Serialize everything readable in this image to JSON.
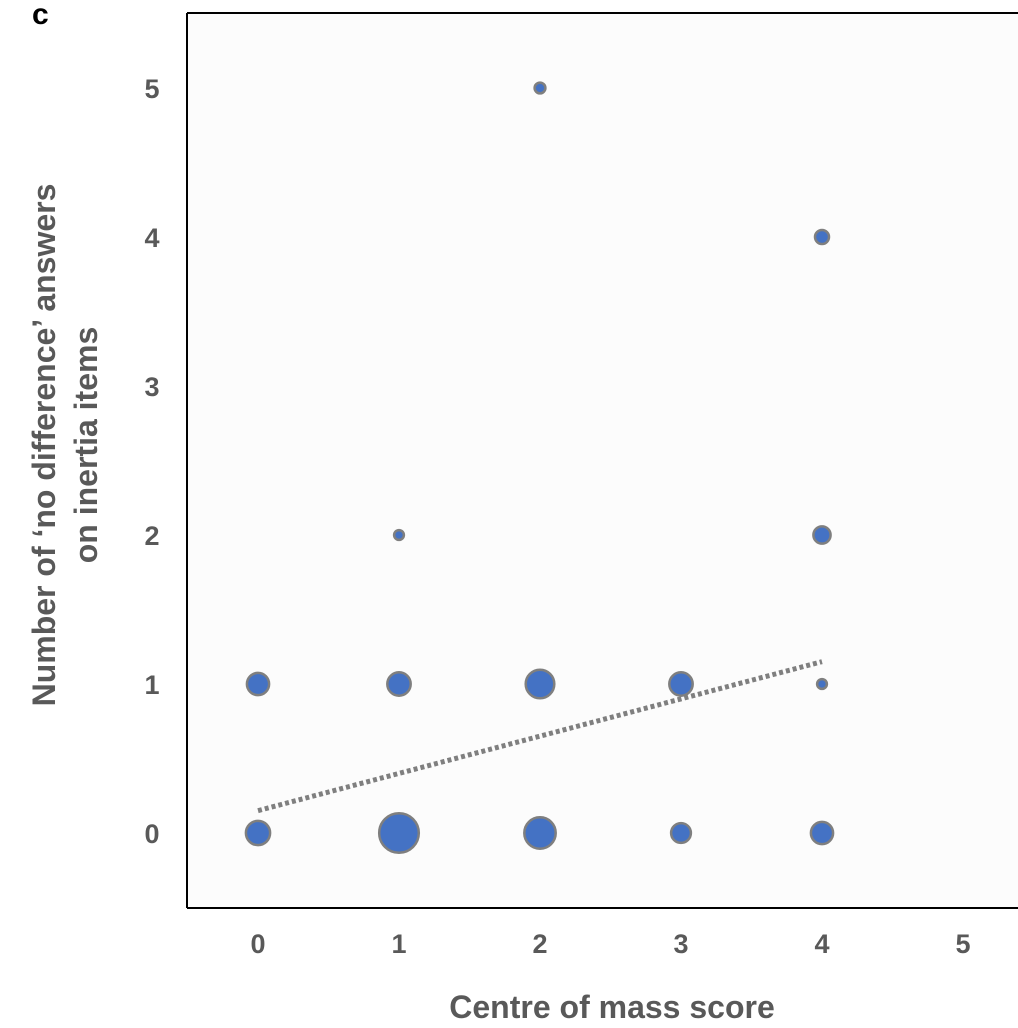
{
  "panel_label": "c",
  "chart_data": {
    "type": "scatter",
    "title": "",
    "xlabel": "Centre of mass score",
    "ylabel": [
      "Number of ‘no difference’ answers",
      "on inertia items"
    ],
    "xlim": [
      -0.5,
      5.5
    ],
    "ylim": [
      -0.5,
      5.5
    ],
    "x_ticks": [
      0,
      1,
      2,
      3,
      4,
      5
    ],
    "y_ticks": [
      0,
      1,
      2,
      3,
      4,
      5
    ],
    "grid": false,
    "points": [
      {
        "x": 0,
        "y": 0,
        "count": 3
      },
      {
        "x": 1,
        "y": 0,
        "count": 8
      },
      {
        "x": 2,
        "y": 0,
        "count": 5
      },
      {
        "x": 3,
        "y": 0,
        "count": 2
      },
      {
        "x": 4,
        "y": 0,
        "count": 2.5
      },
      {
        "x": 0,
        "y": 1,
        "count": 2.5
      },
      {
        "x": 1,
        "y": 1,
        "count": 2.8
      },
      {
        "x": 2,
        "y": 1,
        "count": 4.2
      },
      {
        "x": 3,
        "y": 1,
        "count": 2.8
      },
      {
        "x": 4,
        "y": 1,
        "count": 0.5
      },
      {
        "x": 1,
        "y": 2,
        "count": 0.5
      },
      {
        "x": 4,
        "y": 2,
        "count": 1.5
      },
      {
        "x": 4,
        "y": 4,
        "count": 1
      },
      {
        "x": 2,
        "y": 5,
        "count": 0.6
      }
    ],
    "trendline": {
      "x": [
        0,
        4
      ],
      "y": [
        0.15,
        1.15
      ],
      "style": "dotted"
    },
    "colors": {
      "marker": "#4472c4",
      "marker_edge": "#7f7f7f",
      "trendline": "#7f7f7f",
      "plot_bg": "#fcfcfc",
      "axis": "#000000",
      "text": "#595959"
    }
  }
}
